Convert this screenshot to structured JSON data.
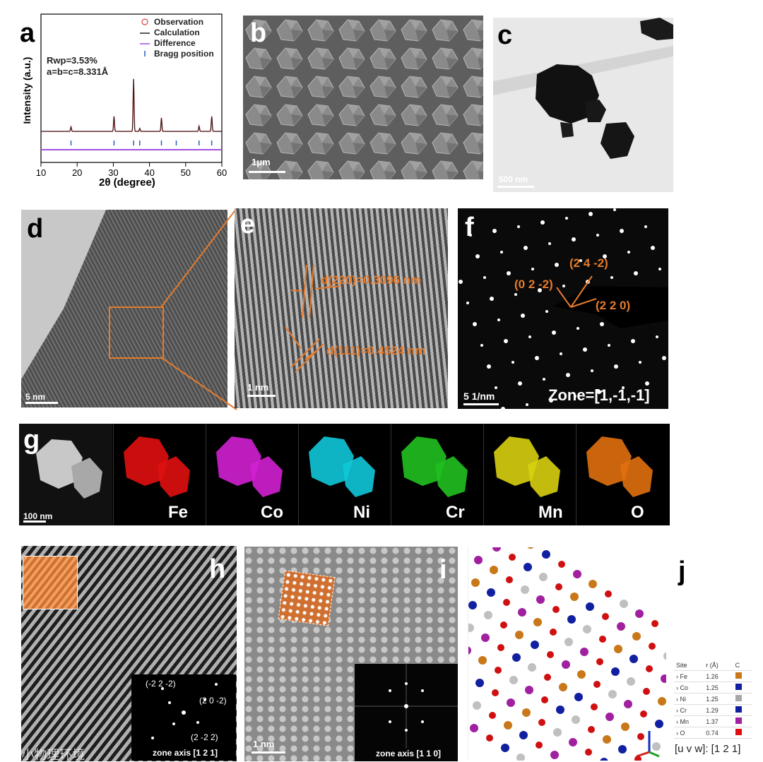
{
  "panels": {
    "a": {
      "label": "a",
      "legend": [
        "Observation",
        "Calculation",
        "Difference",
        "Bragg position"
      ],
      "annotation_rwp": "Rwp=3.53%",
      "annotation_lattice": "a=b=c=8.331Å"
    },
    "b": {
      "label": "b",
      "scale": "1μm"
    },
    "c": {
      "label": "c",
      "scale": "500 nm"
    },
    "d": {
      "label": "d",
      "scale": "5 nm"
    },
    "e": {
      "label": "e",
      "scale": "1 nm",
      "d220": "d(220)=0.3096 nm",
      "d111": "d(111)=0.4524 nm"
    },
    "f": {
      "label": "f",
      "scale": "5 1/nm",
      "zone": "Zone=[1,-1,-1]",
      "spots": [
        "(2 4 -2)",
        "(0 2 -2)",
        "(2 2 0)"
      ]
    },
    "g": {
      "label": "g",
      "scale": "100 nm",
      "elements": [
        "Fe",
        "Co",
        "Ni",
        "Cr",
        "Mn",
        "O"
      ],
      "colors": [
        "#e01010",
        "#d020d0",
        "#10c8d8",
        "#20c020",
        "#d8d010",
        "#e07010"
      ]
    },
    "h": {
      "label": "h",
      "zone": "zone axis [1 2 1]",
      "spots": [
        "(-2 2 -2)",
        "(2 0 -2)",
        "(2 -2 2)"
      ]
    },
    "i": {
      "label": "i",
      "scale": "1 nm",
      "zone": "zone axis [1 1 0]"
    },
    "j": {
      "label": "j",
      "uvw": "[u v w]: [1 2 1]",
      "headers": [
        "Site",
        "r (Å)",
        "C"
      ],
      "rows": [
        {
          "site": "Fe",
          "r": "1.26",
          "color": "#c87818"
        },
        {
          "site": "Co",
          "r": "1.25",
          "color": "#1020a0"
        },
        {
          "site": "Ni",
          "r": "1.25",
          "color": "#a8a8a8"
        },
        {
          "site": "Cr",
          "r": "1.29",
          "color": "#1020a0"
        },
        {
          "site": "Mn",
          "r": "1.37",
          "color": "#a020a0"
        },
        {
          "site": "O",
          "r": "0.74",
          "color": "#e01010"
        }
      ]
    }
  },
  "chart_data": {
    "type": "line",
    "xlabel": "2θ (degree)",
    "ylabel": "Intensity (a.u.)",
    "xlim": [
      10,
      60
    ],
    "xticks": [
      10,
      20,
      30,
      40,
      50,
      60
    ],
    "series": [
      {
        "name": "Observation",
        "color": "#e04040"
      },
      {
        "name": "Calculation",
        "color": "#222222"
      },
      {
        "name": "Difference",
        "color": "#a050e0"
      },
      {
        "name": "Bragg position",
        "color": "#2060c0"
      }
    ],
    "peaks": [
      {
        "x": 18.3,
        "y": 0.06
      },
      {
        "x": 30.2,
        "y": 0.2
      },
      {
        "x": 35.6,
        "y": 0.7
      },
      {
        "x": 37.3,
        "y": 0.04
      },
      {
        "x": 43.3,
        "y": 0.18
      },
      {
        "x": 53.7,
        "y": 0.07
      },
      {
        "x": 57.2,
        "y": 0.2
      }
    ],
    "bragg": [
      18.3,
      30.2,
      35.6,
      37.3,
      43.3,
      47.4,
      53.7,
      57.2
    ],
    "watermark": "@小物理环境"
  }
}
